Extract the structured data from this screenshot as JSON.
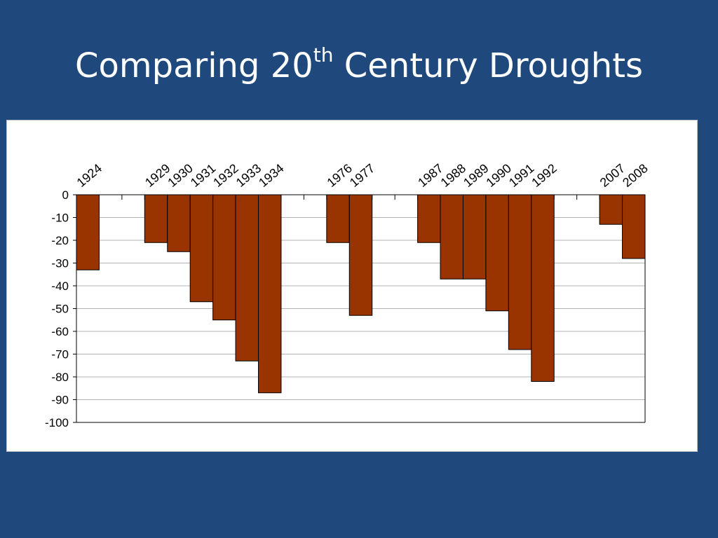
{
  "slide": {
    "title_main": "Comparing 20",
    "title_sup": "th",
    "title_end": " Century Droughts"
  },
  "chart_data": {
    "type": "bar",
    "title": "",
    "xlabel": "",
    "ylabel": "",
    "ylim": [
      -100,
      0
    ],
    "yticks": [
      0,
      -10,
      -20,
      -30,
      -40,
      -50,
      -60,
      -70,
      -80,
      -90,
      -100
    ],
    "grid": true,
    "legend": "none",
    "bar_color": "#993300",
    "categories": [
      "1924",
      "",
      "",
      "1929",
      "1930",
      "1931",
      "1932",
      "1933",
      "1934",
      "",
      "",
      "1976",
      "1977",
      "",
      "",
      "1987",
      "1988",
      "1989",
      "1990",
      "1991",
      "1992",
      "",
      "",
      "2007",
      "2008"
    ],
    "values": [
      -33,
      0,
      0,
      -21,
      -25,
      -47,
      -55,
      -73,
      -87,
      0,
      0,
      -21,
      -53,
      0,
      0,
      -21,
      -37,
      -37,
      -51,
      -68,
      -82,
      0,
      0,
      -13,
      -28
    ]
  }
}
